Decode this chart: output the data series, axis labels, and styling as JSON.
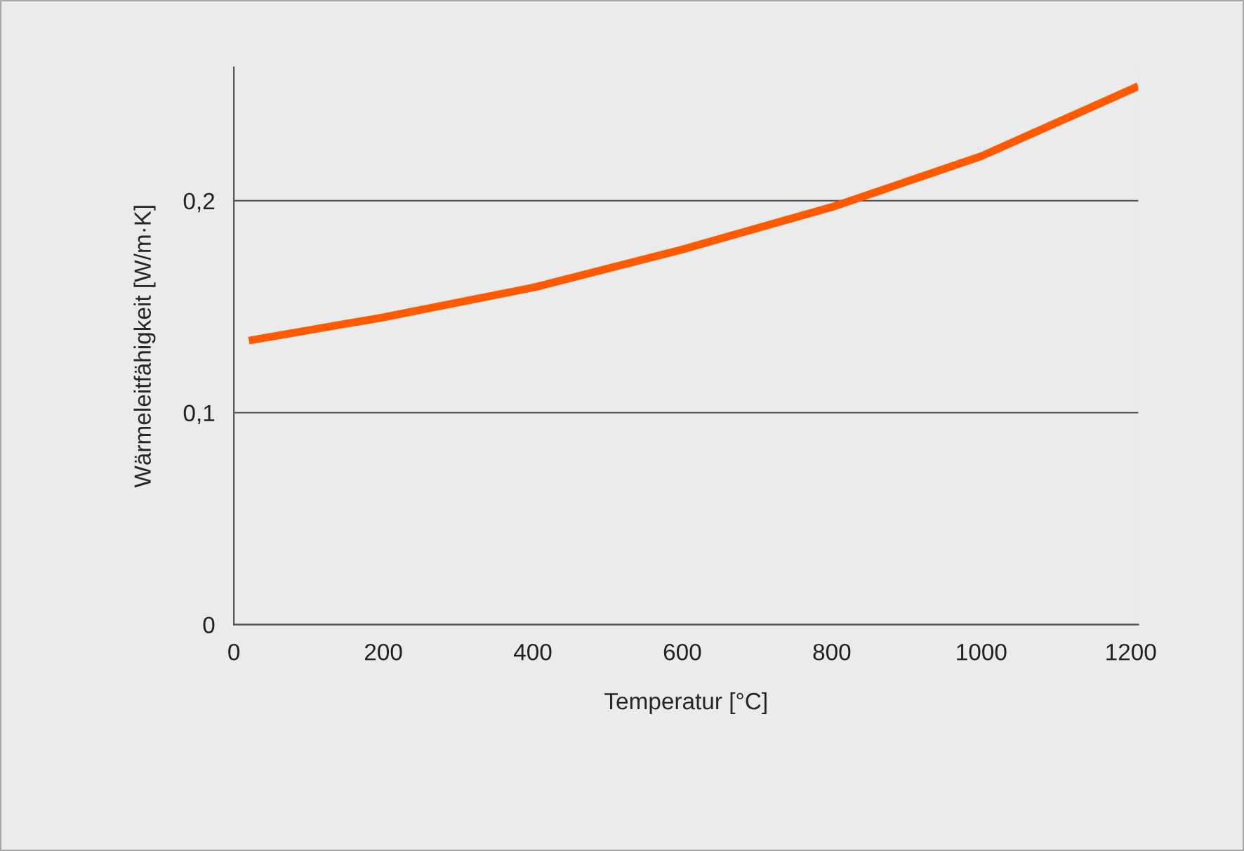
{
  "chart_data": {
    "type": "line",
    "xlabel": "Temperatur [°C]",
    "ylabel": "Wärmeleitfähigkeit [W/m·K]",
    "x": [
      20,
      200,
      400,
      600,
      800,
      1000,
      1210
    ],
    "series": [
      {
        "color": "#ff5a00",
        "values": [
          0.134,
          0.145,
          0.159,
          0.177,
          0.197,
          0.221,
          0.254
        ]
      }
    ],
    "xlim": [
      0,
      1210
    ],
    "ylim": [
      0,
      0.263
    ],
    "xticks": [
      0,
      200,
      400,
      600,
      800,
      1000,
      1200
    ],
    "yticks": [
      {
        "value": 0,
        "label": "0"
      },
      {
        "value": 0.1,
        "label": "0,1"
      },
      {
        "value": 0.2,
        "label": "0,2"
      }
    ],
    "grid": "y",
    "marker": "none",
    "line_style": "solid"
  }
}
